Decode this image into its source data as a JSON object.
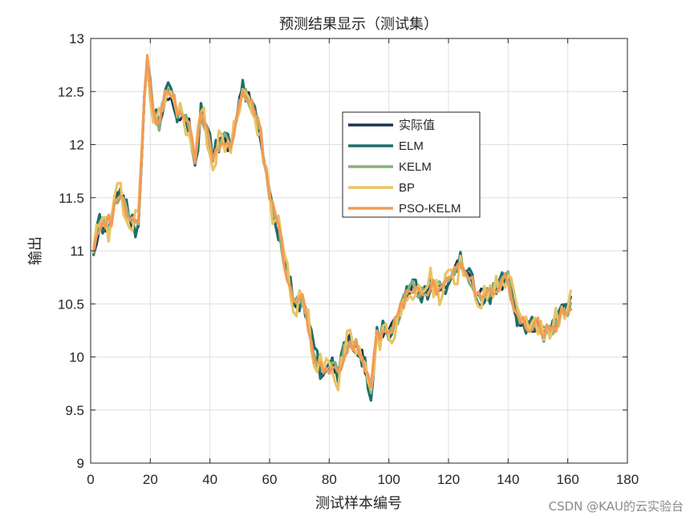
{
  "chart_data": {
    "type": "line",
    "title": "预测结果显示（测试集）",
    "xlabel": "测试样本编号",
    "ylabel": "输出",
    "xlim": [
      0,
      180
    ],
    "ylim": [
      9,
      13
    ],
    "xticks": [
      0,
      20,
      40,
      60,
      80,
      100,
      120,
      140,
      160,
      180
    ],
    "yticks": [
      9,
      9.5,
      10,
      10.5,
      11,
      11.5,
      12,
      12.5,
      13
    ],
    "xtick_labels": [
      "0",
      "20",
      "40",
      "60",
      "80",
      "100",
      "120",
      "140",
      "160",
      "180"
    ],
    "ytick_labels": [
      "9",
      "9.5",
      "10",
      "10.5",
      "11",
      "11.5",
      "12",
      "12.5",
      "13"
    ],
    "grid": true,
    "legend_position": "upper-center-right",
    "series": [
      {
        "name": "实际值",
        "color": "#1b3250"
      },
      {
        "name": "ELM",
        "color": "#1e6e6a"
      },
      {
        "name": "KELM",
        "color": "#86b07a"
      },
      {
        "name": "BP",
        "color": "#e8c464"
      },
      {
        "name": "PSO-KELM",
        "color": "#f39b55"
      }
    ],
    "base_curve": {
      "x": [
        1,
        3,
        5,
        7,
        8,
        10,
        12,
        14,
        16,
        17,
        18,
        19,
        21,
        23,
        25,
        27,
        29,
        31,
        33,
        35,
        37,
        39,
        41,
        43,
        45,
        47,
        49,
        51,
        53,
        55,
        57,
        59,
        61,
        63,
        65,
        67,
        69,
        71,
        73,
        75,
        77,
        79,
        81,
        83,
        85,
        87,
        89,
        91,
        93,
        94,
        96,
        98,
        100,
        102,
        104,
        106,
        108,
        110,
        112,
        114,
        116,
        118,
        120,
        122,
        124,
        126,
        128,
        130,
        132,
        134,
        136,
        138,
        140,
        142,
        144,
        146,
        148,
        150,
        152,
        154,
        156,
        158,
        160,
        161
      ],
      "y": [
        11.0,
        11.25,
        11.25,
        11.3,
        11.45,
        11.55,
        11.4,
        11.25,
        11.2,
        11.8,
        12.4,
        12.8,
        12.3,
        12.2,
        12.45,
        12.5,
        12.3,
        12.3,
        12.2,
        11.8,
        12.3,
        12.1,
        11.9,
        12.0,
        12.05,
        11.95,
        12.3,
        12.5,
        12.45,
        12.3,
        12.1,
        11.7,
        11.4,
        11.2,
        10.9,
        10.65,
        10.5,
        10.55,
        10.3,
        10.0,
        9.9,
        9.85,
        9.95,
        9.85,
        10.05,
        10.15,
        10.1,
        10.0,
        9.8,
        9.7,
        10.2,
        10.25,
        10.2,
        10.3,
        10.45,
        10.6,
        10.65,
        10.6,
        10.6,
        10.7,
        10.65,
        10.7,
        10.7,
        10.8,
        10.9,
        10.8,
        10.7,
        10.55,
        10.6,
        10.6,
        10.65,
        10.7,
        10.75,
        10.45,
        10.35,
        10.3,
        10.3,
        10.3,
        10.25,
        10.25,
        10.3,
        10.4,
        10.45,
        10.5
      ]
    },
    "noise_amplitude": [
      0.07,
      0.11,
      0.07,
      0.14,
      0.07
    ]
  },
  "watermark": "CSDN @KAU的云实验台"
}
